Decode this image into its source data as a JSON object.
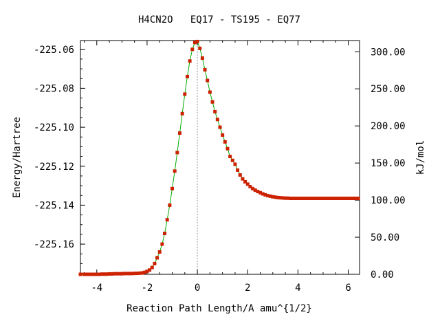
{
  "chart_data": {
    "type": "line",
    "title": "H4CN2O   EQ17 - TS195 - EQ77",
    "xlabel": "Reaction Path Length/A amu^{1/2}",
    "ylabel_left": "Energy/Hartree",
    "ylabel_right": "kJ/mol",
    "xlim": [
      -4.65,
      6.45
    ],
    "ylim": [
      -225.1755,
      -225.0555
    ],
    "x_ticks": [
      "-4",
      "-2",
      "0",
      "2",
      "4",
      "6"
    ],
    "x_tick_values": [
      -4,
      -2,
      0,
      2,
      4,
      6
    ],
    "y_ticks_left": [
      "-225.06",
      "-225.08",
      "-225.10",
      "-225.12",
      "-225.14",
      "-225.16"
    ],
    "y_tick_values_left": [
      -225.06,
      -225.08,
      -225.1,
      -225.12,
      -225.14,
      -225.16
    ],
    "y_ticks_right": [
      "300.00",
      "250.00",
      "200.00",
      "150.00",
      "100.00",
      "50.00",
      "0.00"
    ],
    "y_tick_values_right": [
      300,
      250,
      200,
      150,
      100,
      50,
      0
    ],
    "right_axis_zero_hartree": -225.1755,
    "ts_x": 0,
    "colors": {
      "line": "#00aa00",
      "marker": "#cc2200",
      "ts_line": "#999999",
      "axis": "#000000"
    },
    "series": [
      {
        "points": [
          [
            -4.65,
            -225.1755
          ],
          [
            -4.5,
            -225.1755
          ],
          [
            -4.4,
            -225.1755
          ],
          [
            -4.3,
            -225.1755
          ],
          [
            -4.2,
            -225.1755
          ],
          [
            -4.1,
            -225.1755
          ],
          [
            -4.0,
            -225.1755
          ],
          [
            -3.9,
            -225.1755
          ],
          [
            -3.8,
            -225.1754
          ],
          [
            -3.7,
            -225.1754
          ],
          [
            -3.6,
            -225.1754
          ],
          [
            -3.5,
            -225.1753
          ],
          [
            -3.4,
            -225.1753
          ],
          [
            -3.3,
            -225.1752
          ],
          [
            -3.2,
            -225.1752
          ],
          [
            -3.1,
            -225.1752
          ],
          [
            -3.0,
            -225.1752
          ],
          [
            -2.9,
            -225.1751
          ],
          [
            -2.8,
            -225.1751
          ],
          [
            -2.7,
            -225.1751
          ],
          [
            -2.6,
            -225.1751
          ],
          [
            -2.5,
            -225.175
          ],
          [
            -2.4,
            -225.175
          ],
          [
            -2.3,
            -225.1749
          ],
          [
            -2.2,
            -225.1748
          ],
          [
            -2.1,
            -225.1745
          ],
          [
            -2.0,
            -225.174
          ],
          [
            -1.9,
            -225.1733
          ],
          [
            -1.8,
            -225.172
          ],
          [
            -1.7,
            -225.17
          ],
          [
            -1.6,
            -225.167
          ],
          [
            -1.5,
            -225.164
          ],
          [
            -1.4,
            -225.16
          ],
          [
            -1.3,
            -225.1545
          ],
          [
            -1.2,
            -225.1475
          ],
          [
            -1.1,
            -225.14
          ],
          [
            -1.0,
            -225.1315
          ],
          [
            -0.9,
            -225.1225
          ],
          [
            -0.8,
            -225.113
          ],
          [
            -0.7,
            -225.103
          ],
          [
            -0.6,
            -225.093
          ],
          [
            -0.5,
            -225.083
          ],
          [
            -0.4,
            -225.074
          ],
          [
            -0.3,
            -225.066
          ],
          [
            -0.2,
            -225.06
          ],
          [
            -0.1,
            -225.0565
          ],
          [
            0.0,
            -225.056
          ],
          [
            0.1,
            -225.0595
          ],
          [
            0.2,
            -225.0645
          ],
          [
            0.3,
            -225.0705
          ],
          [
            0.4,
            -225.076
          ],
          [
            0.5,
            -225.082
          ],
          [
            0.6,
            -225.087
          ],
          [
            0.7,
            -225.092
          ],
          [
            0.8,
            -225.096
          ],
          [
            0.9,
            -225.1
          ],
          [
            1.0,
            -225.104
          ],
          [
            1.1,
            -225.1075
          ],
          [
            1.2,
            -225.111
          ],
          [
            1.3,
            -225.115
          ],
          [
            1.4,
            -225.117
          ],
          [
            1.5,
            -225.119
          ],
          [
            1.6,
            -225.122
          ],
          [
            1.7,
            -225.1245
          ],
          [
            1.8,
            -225.1265
          ],
          [
            1.9,
            -225.128
          ],
          [
            2.0,
            -225.1292
          ],
          [
            2.1,
            -225.1305
          ],
          [
            2.2,
            -225.1315
          ],
          [
            2.3,
            -225.1323
          ],
          [
            2.4,
            -225.133
          ],
          [
            2.5,
            -225.1336
          ],
          [
            2.6,
            -225.1342
          ],
          [
            2.7,
            -225.1347
          ],
          [
            2.8,
            -225.1351
          ],
          [
            2.9,
            -225.1354
          ],
          [
            3.0,
            -225.1357
          ],
          [
            3.1,
            -225.1359
          ],
          [
            3.2,
            -225.1361
          ],
          [
            3.3,
            -225.1362
          ],
          [
            3.4,
            -225.1363
          ],
          [
            3.5,
            -225.1364
          ],
          [
            3.6,
            -225.1364
          ],
          [
            3.7,
            -225.1365
          ],
          [
            3.8,
            -225.1365
          ],
          [
            3.9,
            -225.1365
          ],
          [
            4.0,
            -225.1365
          ],
          [
            4.1,
            -225.1365
          ],
          [
            4.2,
            -225.1365
          ],
          [
            4.3,
            -225.1365
          ],
          [
            4.4,
            -225.1365
          ],
          [
            4.5,
            -225.1365
          ],
          [
            4.6,
            -225.1365
          ],
          [
            4.7,
            -225.1365
          ],
          [
            4.8,
            -225.1365
          ],
          [
            4.9,
            -225.1365
          ],
          [
            5.0,
            -225.1365
          ],
          [
            5.1,
            -225.1365
          ],
          [
            5.2,
            -225.1365
          ],
          [
            5.3,
            -225.1365
          ],
          [
            5.4,
            -225.1365
          ],
          [
            5.5,
            -225.1365
          ],
          [
            5.6,
            -225.1365
          ],
          [
            5.7,
            -225.1365
          ],
          [
            5.8,
            -225.1365
          ],
          [
            5.9,
            -225.1365
          ],
          [
            6.0,
            -225.1365
          ],
          [
            6.1,
            -225.1365
          ],
          [
            6.2,
            -225.1365
          ],
          [
            6.3,
            -225.1365
          ],
          [
            6.4,
            -225.1365
          ]
        ]
      }
    ],
    "grid": false,
    "legend": "none"
  }
}
